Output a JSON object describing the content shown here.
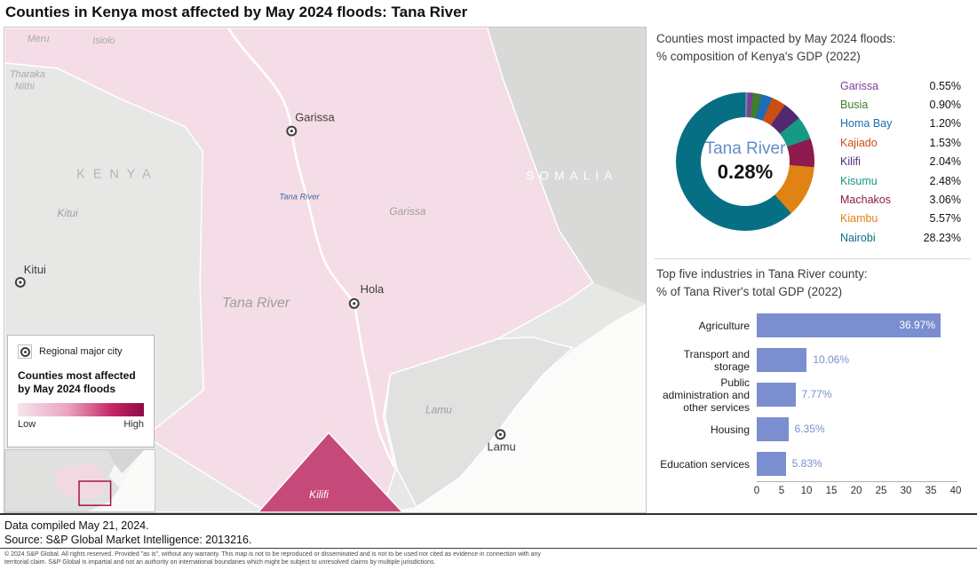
{
  "title": "Counties in Kenya most affected by May 2024 floods: Tana River",
  "map": {
    "labels": {
      "meru": "Meru",
      "isiolo": "Isiolo",
      "tharaka_line1": "Tharaka",
      "tharaka_line2": "Nithi",
      "kenya": "KENYA",
      "somalia": "SOMALIA",
      "kitui_county": "Kitui",
      "kitui_city": "Kitui",
      "garissa_city": "Garissa",
      "garissa_county": "Garissa",
      "river": "Tana River",
      "tana_river_county": "Tana River",
      "hola_city": "Hola",
      "lamu_county": "Lamu",
      "lamu_city": "Lamu",
      "kilifi_county": "Kilifi"
    },
    "legend": {
      "city": "Regional major city",
      "affected_line1": "Counties most affected",
      "affected_line2": "by May 2024 floods",
      "low": "Low",
      "high": "High"
    },
    "colors": {
      "affected_light": "#f5dde7",
      "affected_dark": "#c64a79",
      "base_gray": "#e7e7e6"
    }
  },
  "donut": {
    "title_line1": "Counties most impacted by May 2024 floods:",
    "title_line2": "% composition of Kenya's GDP (2022)",
    "center": {
      "name": "Tana River",
      "value_label": "0.28%",
      "value": 0.28,
      "color": "#6b7fae"
    },
    "items": [
      {
        "name": "Garissa",
        "value": 0.55,
        "value_label": "0.55%",
        "color": "#7d3f98"
      },
      {
        "name": "Busia",
        "value": 0.9,
        "value_label": "0.90%",
        "color": "#3f7e2a"
      },
      {
        "name": "Homa Bay",
        "value": 1.2,
        "value_label": "1.20%",
        "color": "#1f6cb4"
      },
      {
        "name": "Kajiado",
        "value": 1.53,
        "value_label": "1.53%",
        "color": "#c94f12"
      },
      {
        "name": "Kilifi",
        "value": 2.04,
        "value_label": "2.04%",
        "color": "#53286f"
      },
      {
        "name": "Kisumu",
        "value": 2.48,
        "value_label": "2.48%",
        "color": "#169a85"
      },
      {
        "name": "Machakos",
        "value": 3.06,
        "value_label": "3.06%",
        "color": "#8e1b4e"
      },
      {
        "name": "Kiambu",
        "value": 5.57,
        "value_label": "5.57%",
        "color": "#e08214"
      },
      {
        "name": "Nairobi",
        "value": 28.23,
        "value_label": "28.23%",
        "color": "#076f83"
      }
    ]
  },
  "bars": {
    "title_line1": "Top five industries in Tana River county:",
    "title_line2": "% of Tana River's total GDP (2022)",
    "color": "#7b8ecf",
    "xmax": 40,
    "ticks": [
      0,
      5,
      10,
      15,
      20,
      25,
      30,
      35,
      40
    ],
    "items": [
      {
        "label": "Agriculture",
        "value": 36.97,
        "value_label": "36.97%"
      },
      {
        "label": "Transport and storage",
        "value": 10.06,
        "value_label": "10.06%"
      },
      {
        "label": "Public administration and other services",
        "value": 7.77,
        "value_label": "7.77%"
      },
      {
        "label": "Housing",
        "value": 6.35,
        "value_label": "6.35%"
      },
      {
        "label": "Education services",
        "value": 5.83,
        "value_label": "5.83%"
      }
    ]
  },
  "footer": {
    "compiled": "Data compiled May 21, 2024.",
    "source": "Source: S&P Global Market Intelligence: 2013216.",
    "legal_line1": "© 2024 S&P Global. All rights reserved. Provided \"as is\", without any warranty. This map is not to be reproduced or disseminated and is not to be used nor cited as evidence in connection with any",
    "legal_line2": "territorial claim. S&P Global is impartial and not an authority on international boundaries which might be subject to unresolved claims by multiple jurisdictions."
  },
  "chart_data": [
    {
      "type": "pie",
      "subtype": "donut",
      "title": "Counties most impacted by May 2024 floods: % composition of Kenya's GDP (2022)",
      "center_label": "Tana River 0.28%",
      "categories": [
        "Tana River",
        "Garissa",
        "Busia",
        "Homa Bay",
        "Kajiado",
        "Kilifi",
        "Kisumu",
        "Machakos",
        "Kiambu",
        "Nairobi"
      ],
      "values": [
        0.28,
        0.55,
        0.9,
        1.2,
        1.53,
        2.04,
        2.48,
        3.06,
        5.57,
        28.23
      ],
      "legend_position": "right"
    },
    {
      "type": "bar",
      "orientation": "horizontal",
      "title": "Top five industries in Tana River county: % of Tana River's total GDP (2022)",
      "categories": [
        "Agriculture",
        "Transport and storage",
        "Public administration and other services",
        "Housing",
        "Education services"
      ],
      "values": [
        36.97,
        10.06,
        7.77,
        6.35,
        5.83
      ],
      "xlim": [
        0,
        40
      ],
      "xticks": [
        0,
        5,
        10,
        15,
        20,
        25,
        30,
        35,
        40
      ],
      "grid": false
    }
  ]
}
